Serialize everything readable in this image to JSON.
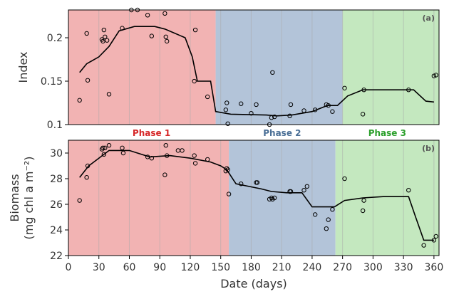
{
  "colors": {
    "phase1_fill": "#f2b3b3",
    "phase2_fill": "#b3c4d9",
    "phase3_fill": "#c4e8bf",
    "phase1_text": "#d62728",
    "phase2_text": "#4a6f96",
    "phase3_text": "#2ca02c",
    "gridline": "#a9a9a9",
    "line": "#000000"
  },
  "phase_labels": [
    "Phase 1",
    "Phase 2",
    "Phase 3"
  ],
  "chart_data": [
    {
      "type": "scatter",
      "panel_tag": "(a)",
      "ylabel": "Index",
      "xlim": [
        0,
        365
      ],
      "ylim": [
        0.1,
        0.232
      ],
      "yticks": [
        0.1,
        0.15,
        0.2
      ],
      "ytick_labels": [
        "0.1",
        "0.15",
        "0.2"
      ],
      "phases": [
        {
          "name": "Phase 1",
          "start": 0,
          "end": 145
        },
        {
          "name": "Phase 2",
          "start": 145,
          "end": 270
        },
        {
          "name": "Phase 3",
          "start": 270,
          "end": 365
        }
      ],
      "grid": "vertical",
      "points": [
        [
          11,
          0.128
        ],
        [
          18,
          0.205
        ],
        [
          19,
          0.151
        ],
        [
          33,
          0.198
        ],
        [
          34,
          0.196
        ],
        [
          35,
          0.209
        ],
        [
          36,
          0.201
        ],
        [
          38,
          0.197
        ],
        [
          40,
          0.135
        ],
        [
          53,
          0.211
        ],
        [
          62,
          0.243
        ],
        [
          68,
          0.247
        ],
        [
          78,
          0.226
        ],
        [
          82,
          0.202
        ],
        [
          95,
          0.228
        ],
        [
          96,
          0.201
        ],
        [
          97,
          0.196
        ],
        [
          124,
          0.15
        ],
        [
          125,
          0.209
        ],
        [
          137,
          0.132
        ],
        [
          155,
          0.117
        ],
        [
          156,
          0.125
        ],
        [
          157,
          0.101
        ],
        [
          170,
          0.124
        ],
        [
          180,
          0.113
        ],
        [
          185,
          0.123
        ],
        [
          198,
          0.098
        ],
        [
          200,
          0.108
        ],
        [
          201,
          0.16
        ],
        [
          203,
          0.109
        ],
        [
          218,
          0.11
        ],
        [
          219,
          0.123
        ],
        [
          232,
          0.116
        ],
        [
          243,
          0.117
        ],
        [
          254,
          0.123
        ],
        [
          256,
          0.122
        ],
        [
          260,
          0.115
        ],
        [
          272,
          0.142
        ],
        [
          290,
          0.112
        ],
        [
          291,
          0.14
        ],
        [
          335,
          0.14
        ],
        [
          360,
          0.156
        ],
        [
          362,
          0.157
        ]
      ],
      "line": [
        [
          11,
          0.16
        ],
        [
          18,
          0.17
        ],
        [
          30,
          0.178
        ],
        [
          40,
          0.19
        ],
        [
          50,
          0.208
        ],
        [
          65,
          0.213
        ],
        [
          85,
          0.213
        ],
        [
          95,
          0.21
        ],
        [
          105,
          0.205
        ],
        [
          115,
          0.2
        ],
        [
          122,
          0.178
        ],
        [
          127,
          0.15
        ],
        [
          140,
          0.15
        ],
        [
          145,
          0.115
        ],
        [
          160,
          0.112
        ],
        [
          195,
          0.111
        ],
        [
          205,
          0.11
        ],
        [
          220,
          0.111
        ],
        [
          240,
          0.115
        ],
        [
          255,
          0.122
        ],
        [
          265,
          0.122
        ],
        [
          275,
          0.133
        ],
        [
          290,
          0.14
        ],
        [
          340,
          0.14
        ],
        [
          352,
          0.127
        ],
        [
          360,
          0.126
        ]
      ]
    },
    {
      "type": "scatter",
      "panel_tag": "(b)",
      "ylabel": "Biomass",
      "ylabel_units": "(mg chl a m⁻²)",
      "xlabel": "Date (days)",
      "xlim": [
        0,
        365
      ],
      "ylim": [
        22,
        31
      ],
      "xticks": [
        0,
        30,
        60,
        90,
        120,
        150,
        180,
        210,
        240,
        270,
        300,
        330,
        360
      ],
      "xtick_labels": [
        "0",
        "30",
        "60",
        "90",
        "120",
        "150",
        "180",
        "210",
        "240",
        "270",
        "300",
        "330",
        "360"
      ],
      "yticks": [
        22,
        24,
        26,
        28,
        30
      ],
      "ytick_labels": [
        "22",
        "24",
        "26",
        "28",
        "30"
      ],
      "phases": [
        {
          "name": "Phase 1",
          "start": 0,
          "end": 158
        },
        {
          "name": "Phase 2",
          "start": 158,
          "end": 263
        },
        {
          "name": "Phase 3",
          "start": 263,
          "end": 365
        }
      ],
      "grid": "vertical",
      "points": [
        [
          11,
          26.3
        ],
        [
          18,
          28.1
        ],
        [
          19,
          29.0
        ],
        [
          33,
          30.3
        ],
        [
          34,
          30.4
        ],
        [
          35,
          29.9
        ],
        [
          36,
          30.4
        ],
        [
          40,
          30.6
        ],
        [
          53,
          30.4
        ],
        [
          54,
          30.0
        ],
        [
          78,
          29.7
        ],
        [
          82,
          29.6
        ],
        [
          95,
          28.3
        ],
        [
          96,
          30.6
        ],
        [
          97,
          29.8
        ],
        [
          108,
          30.2
        ],
        [
          112,
          30.2
        ],
        [
          124,
          29.8
        ],
        [
          125,
          29.2
        ],
        [
          137,
          29.5
        ],
        [
          155,
          28.6
        ],
        [
          156,
          28.8
        ],
        [
          157,
          28.7
        ],
        [
          158,
          26.8
        ],
        [
          170,
          27.6
        ],
        [
          185,
          27.7
        ],
        [
          186,
          27.7
        ],
        [
          198,
          26.4
        ],
        [
          200,
          26.5
        ],
        [
          201,
          26.4
        ],
        [
          203,
          26.5
        ],
        [
          218,
          27.0
        ],
        [
          219,
          27.0
        ],
        [
          232,
          27.1
        ],
        [
          235,
          27.4
        ],
        [
          243,
          25.2
        ],
        [
          254,
          24.1
        ],
        [
          256,
          24.8
        ],
        [
          260,
          25.6
        ],
        [
          272,
          28.0
        ],
        [
          290,
          25.5
        ],
        [
          291,
          26.3
        ],
        [
          335,
          27.1
        ],
        [
          350,
          22.8
        ],
        [
          360,
          23.2
        ],
        [
          362,
          23.5
        ]
      ],
      "line": [
        [
          11,
          28.1
        ],
        [
          20,
          29.0
        ],
        [
          30,
          29.6
        ],
        [
          40,
          30.2
        ],
        [
          60,
          30.2
        ],
        [
          80,
          29.7
        ],
        [
          100,
          29.8
        ],
        [
          120,
          29.6
        ],
        [
          140,
          29.3
        ],
        [
          150,
          29.0
        ],
        [
          156,
          28.7
        ],
        [
          165,
          27.6
        ],
        [
          190,
          27.2
        ],
        [
          200,
          27.0
        ],
        [
          215,
          26.9
        ],
        [
          230,
          26.9
        ],
        [
          240,
          25.8
        ],
        [
          262,
          25.8
        ],
        [
          272,
          26.3
        ],
        [
          290,
          26.5
        ],
        [
          310,
          26.6
        ],
        [
          335,
          26.6
        ],
        [
          342,
          25.0
        ],
        [
          350,
          23.2
        ],
        [
          360,
          23.2
        ]
      ]
    }
  ]
}
